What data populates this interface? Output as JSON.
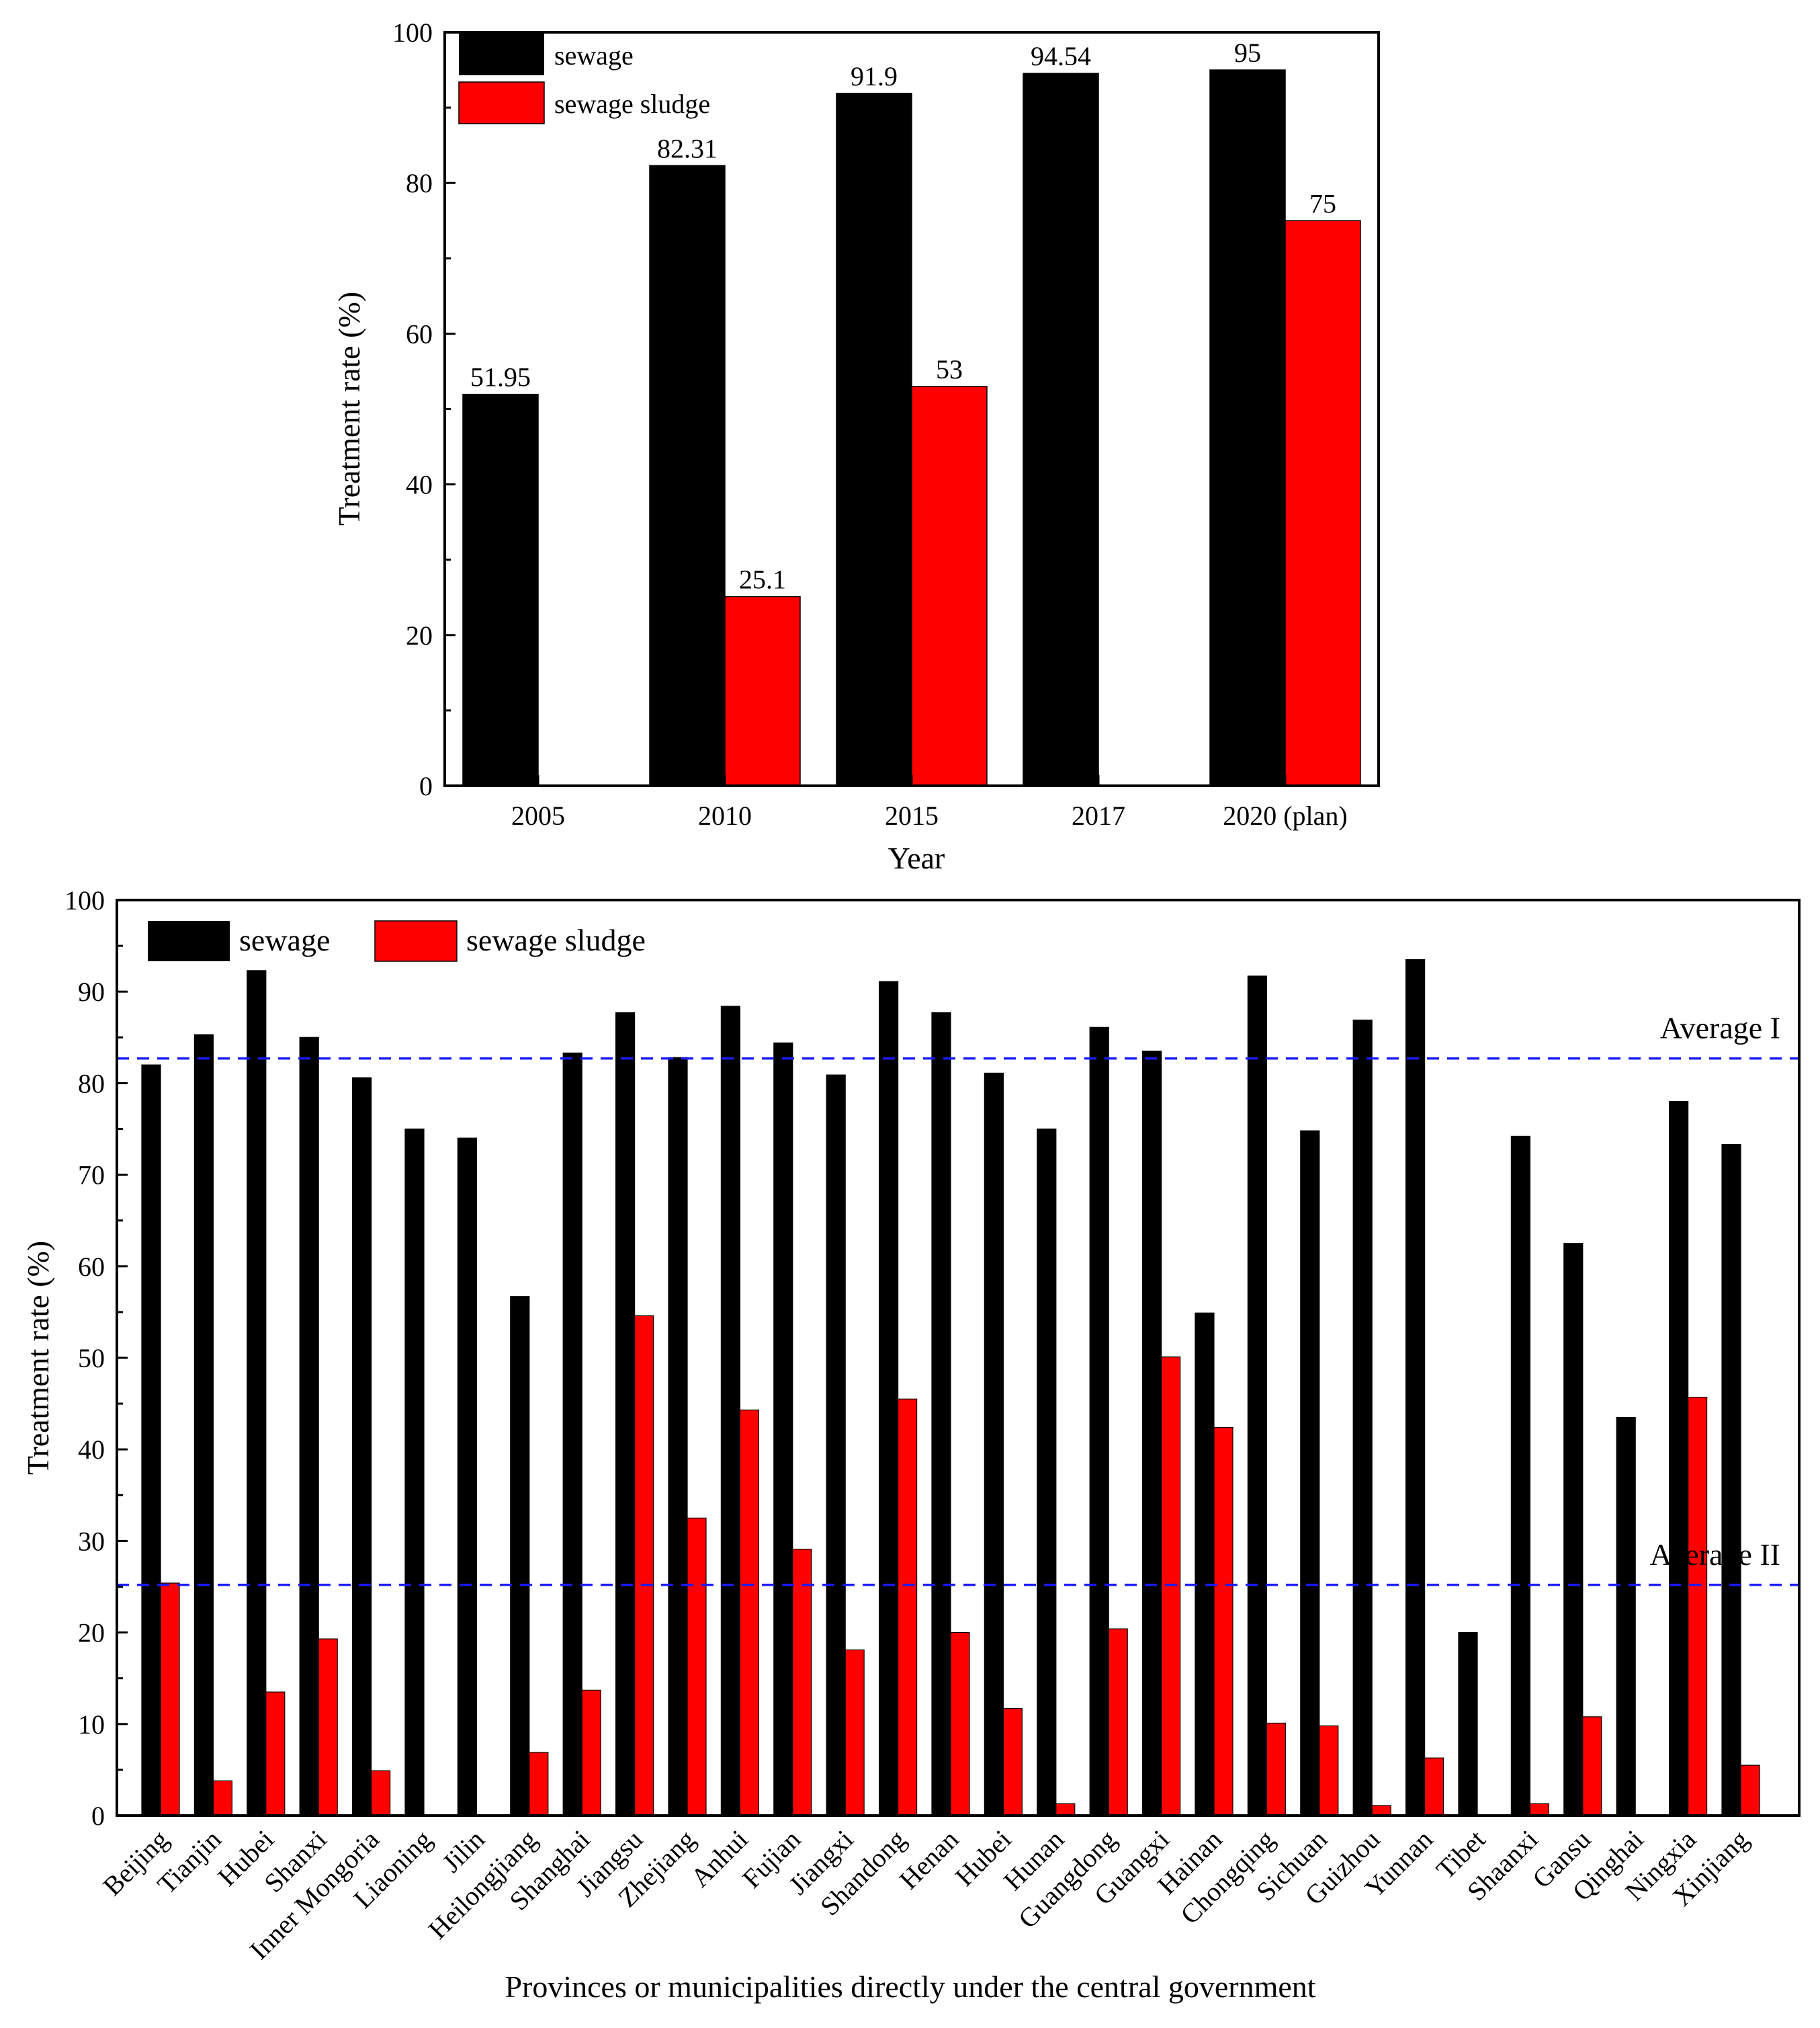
{
  "chart_data": [
    {
      "type": "bar",
      "title": "",
      "xlabel": "Year",
      "ylabel": "Treatment rate (%)",
      "ylim": [
        0,
        100
      ],
      "yticks": [
        "0",
        "20",
        "40",
        "60",
        "80",
        "100"
      ],
      "categories": [
        "2005",
        "2010",
        "2015",
        "2017",
        "2020 (plan)"
      ],
      "legend_position": "top-left",
      "series": [
        {
          "name": "sewage",
          "color": "#000000",
          "values": [
            51.95,
            82.31,
            91.9,
            94.54,
            95
          ],
          "labels": [
            "51.95",
            "82.31",
            "91.9",
            "94.54",
            "95"
          ]
        },
        {
          "name": "sewage sludge",
          "color": "#ff0000",
          "values": [
            null,
            25.1,
            53,
            null,
            75
          ],
          "labels": [
            "",
            "25.1",
            "53",
            "",
            "75"
          ]
        }
      ]
    },
    {
      "type": "bar",
      "title": "",
      "xlabel": "Provinces or municipalities directly under the central government",
      "ylabel": "Treatment rate (%)",
      "ylim": [
        0,
        100
      ],
      "yticks": [
        "0",
        "10",
        "20",
        "30",
        "40",
        "50",
        "60",
        "70",
        "80",
        "90",
        "100"
      ],
      "categories": [
        "Beijing",
        "Tianjin",
        "Hubei",
        "Shanxi",
        "Inner Mongoria",
        "Liaoning",
        "Jilin",
        "Heilongjiang",
        "Shanghai",
        "Jiangsu",
        "Zhejiang",
        "Anhui",
        "Fujian",
        "Jiangxi",
        "Shandong",
        "Henan",
        "Hubei",
        "Hunan",
        "Guangdong",
        "Guangxi",
        "Hainan",
        "Chongqing",
        "Sichuan",
        "Guizhou",
        "Yunnan",
        "Tibet",
        "Shaanxi",
        "Gansu",
        "Qinghai",
        "Ningxia",
        "Xinjiang"
      ],
      "legend_position": "top-left",
      "series": [
        {
          "name": "sewage",
          "color": "#000000",
          "values": [
            82.0,
            85.3,
            92.3,
            85.0,
            80.6,
            75.0,
            74.0,
            56.7,
            83.3,
            87.7,
            82.8,
            88.4,
            84.4,
            80.9,
            91.1,
            87.7,
            81.1,
            75.0,
            86.1,
            83.5,
            54.9,
            91.7,
            74.8,
            86.9,
            93.5,
            20.0,
            74.2,
            62.5,
            43.5,
            78.0,
            73.3
          ]
        },
        {
          "name": "sewage sludge",
          "color": "#ff0000",
          "values": [
            25.4,
            3.8,
            13.5,
            19.3,
            4.9,
            0.0,
            0.0,
            6.9,
            13.7,
            54.6,
            32.5,
            44.3,
            29.1,
            18.1,
            45.5,
            20.0,
            11.7,
            1.3,
            20.4,
            50.1,
            42.4,
            10.1,
            9.8,
            1.1,
            6.3,
            0.0,
            1.3,
            10.8,
            0.0,
            45.7,
            5.5
          ]
        }
      ],
      "reference_lines": [
        {
          "label": "Average I",
          "value": 82.7
        },
        {
          "label": "Average II",
          "value": 25.2
        }
      ]
    }
  ]
}
